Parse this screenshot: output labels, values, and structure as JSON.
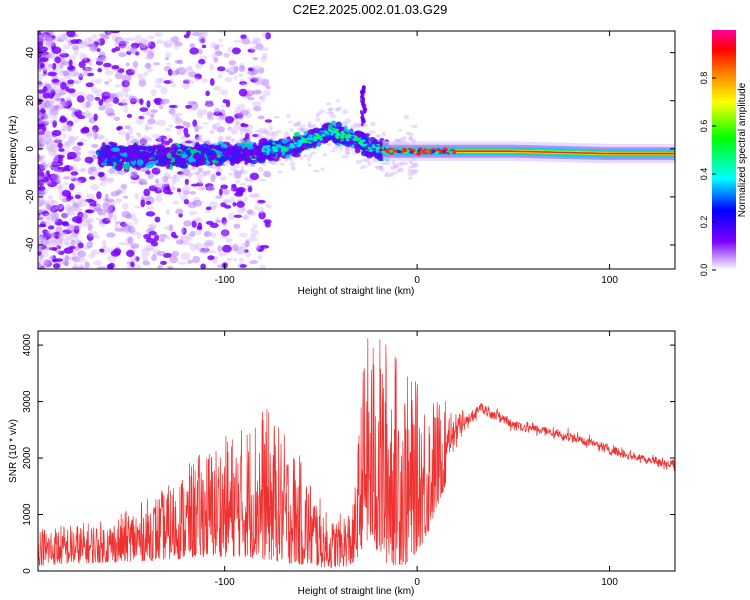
{
  "title": "C2E2.2025.002.01.03.G29",
  "chart_data": [
    {
      "type": "heatmap",
      "xlabel": "Height of straight line (km)",
      "ylabel": "Frequency (Hz)",
      "xlim": [
        -197,
        134
      ],
      "ylim": [
        -50,
        49
      ],
      "x_ticks": [
        -100,
        0,
        100
      ],
      "y_ticks": [
        -40,
        -20,
        0,
        20,
        40
      ],
      "x_tick_labels": [
        "-100",
        "0",
        "100"
      ],
      "y_tick_labels": [
        "-40",
        "-20",
        "0",
        "20",
        "40"
      ],
      "colorbar": {
        "label": "Normalized spectral amplitude",
        "range": [
          0,
          1
        ],
        "ticks": [
          0,
          0.2,
          0.4,
          0.6,
          0.8
        ],
        "tick_labels": [
          "0.0",
          "0.2",
          "0.4",
          "0.6",
          "0.8"
        ],
        "colormap": [
          "#ffffff",
          "#7a00ff",
          "#0000ff",
          "#00ffff",
          "#00ff00",
          "#ffff00",
          "#ff8000",
          "#ff0000",
          "#ff00a0"
        ]
      },
      "ridge": [
        {
          "x": -160,
          "f": -3
        },
        {
          "x": -120,
          "f": -3
        },
        {
          "x": -90,
          "f": -2
        },
        {
          "x": -70,
          "f": 0
        },
        {
          "x": -55,
          "f": 4
        },
        {
          "x": -45,
          "f": 7
        },
        {
          "x": -35,
          "f": 5
        },
        {
          "x": -25,
          "f": 1
        },
        {
          "x": -15,
          "f": -1
        },
        {
          "x": 0,
          "f": -1
        },
        {
          "x": 50,
          "f": -1
        },
        {
          "x": 100,
          "f": -2
        },
        {
          "x": 134,
          "f": -2
        }
      ],
      "grid": false
    },
    {
      "type": "line",
      "xlabel": "Height of straight line (km)",
      "ylabel": "SNR (10 * v/v)",
      "xlim": [
        -197,
        134
      ],
      "ylim": [
        0,
        4250
      ],
      "x_ticks": [
        -100,
        0,
        100
      ],
      "y_ticks": [
        0,
        1000,
        2000,
        3000,
        4000
      ],
      "x_tick_labels": [
        "-100",
        "0",
        "100"
      ],
      "y_tick_labels": [
        "0",
        "1000",
        "2000",
        "3000",
        "4000"
      ],
      "color": "#ee3030",
      "envelope": [
        {
          "x": -197,
          "lo": 100,
          "hi": 800
        },
        {
          "x": -160,
          "lo": 150,
          "hi": 900
        },
        {
          "x": -130,
          "lo": 200,
          "hi": 1500
        },
        {
          "x": -110,
          "lo": 250,
          "hi": 2200
        },
        {
          "x": -90,
          "lo": 250,
          "hi": 2600
        },
        {
          "x": -80,
          "lo": 200,
          "hi": 3000
        },
        {
          "x": -60,
          "lo": 100,
          "hi": 2000
        },
        {
          "x": -45,
          "lo": 50,
          "hi": 900
        },
        {
          "x": -33,
          "lo": 100,
          "hi": 1200
        },
        {
          "x": -27,
          "lo": 500,
          "hi": 4200
        },
        {
          "x": -15,
          "lo": 100,
          "hi": 4200
        },
        {
          "x": -5,
          "lo": 100,
          "hi": 3500
        },
        {
          "x": 5,
          "lo": 600,
          "hi": 3200
        },
        {
          "x": 20,
          "lo": 2000,
          "hi": 2900
        },
        {
          "x": 33,
          "lo": 2700,
          "hi": 3100
        },
        {
          "x": 50,
          "lo": 2400,
          "hi": 2800
        },
        {
          "x": 80,
          "lo": 2200,
          "hi": 2550
        },
        {
          "x": 110,
          "lo": 1900,
          "hi": 2200
        },
        {
          "x": 134,
          "lo": 1700,
          "hi": 2050
        }
      ],
      "grid": false
    }
  ]
}
